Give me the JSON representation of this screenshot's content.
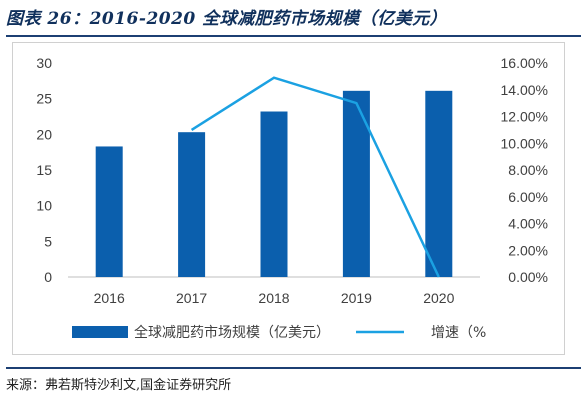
{
  "figure": {
    "title": "图表 26：2016-2020 全球减肥药市场规模（亿美元）",
    "source": "来源：弗若斯特沙利文,国金证券研究所"
  },
  "colors": {
    "bar": "#0b5fad",
    "line": "#1ba1e2",
    "rule": "#1c3f73",
    "title": "#10305c"
  },
  "chart_data": {
    "type": "bar",
    "categories": [
      "2016",
      "2017",
      "2018",
      "2019",
      "2020"
    ],
    "series": [
      {
        "name": "全球减肥药市场规模（亿美元）",
        "type": "bar",
        "axis": "left",
        "values": [
          18.3,
          20.3,
          23.2,
          26.1,
          26.1
        ]
      },
      {
        "name": "增速（%",
        "type": "line",
        "axis": "right",
        "values": [
          null,
          11.0,
          14.9,
          13.0,
          0.0
        ]
      }
    ],
    "y_left": {
      "lim": [
        0,
        30
      ],
      "ticks": [
        0,
        5,
        10,
        15,
        20,
        25,
        30
      ],
      "tick_labels": [
        "0",
        "5",
        "10",
        "15",
        "20",
        "25",
        "30"
      ]
    },
    "y_right": {
      "lim": [
        0,
        16
      ],
      "ticks": [
        0,
        2,
        4,
        6,
        8,
        10,
        12,
        14,
        16
      ],
      "tick_labels": [
        "0.00%",
        "2.00%",
        "4.00%",
        "6.00%",
        "8.00%",
        "10.00%",
        "12.00%",
        "14.00%",
        "16.00%"
      ]
    },
    "grid": false,
    "legend": "bottom"
  }
}
